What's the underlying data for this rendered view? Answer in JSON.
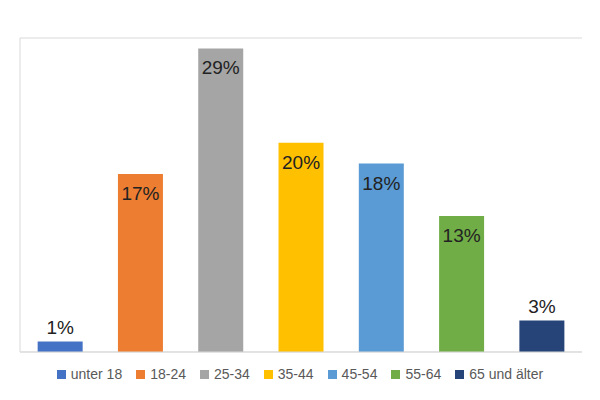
{
  "chart_data": {
    "type": "bar",
    "categories": [
      "unter 18",
      "18-24",
      "25-34",
      "35-44",
      "45-54",
      "55-64",
      "65 und älter"
    ],
    "values": [
      1,
      17,
      29,
      20,
      18,
      13,
      3
    ],
    "value_labels": [
      "1%",
      "17%",
      "29%",
      "20%",
      "18%",
      "13%",
      "3%"
    ],
    "colors": [
      "#4472c4",
      "#ed7d31",
      "#a5a5a5",
      "#ffc000",
      "#5b9bd5",
      "#70ad47",
      "#264478"
    ],
    "ylim": [
      0,
      30
    ],
    "yticks": [
      0,
      5,
      10,
      15,
      20,
      25,
      30
    ],
    "grid": true,
    "data_labels": true,
    "tick_labels": false,
    "legend": "bottom"
  }
}
